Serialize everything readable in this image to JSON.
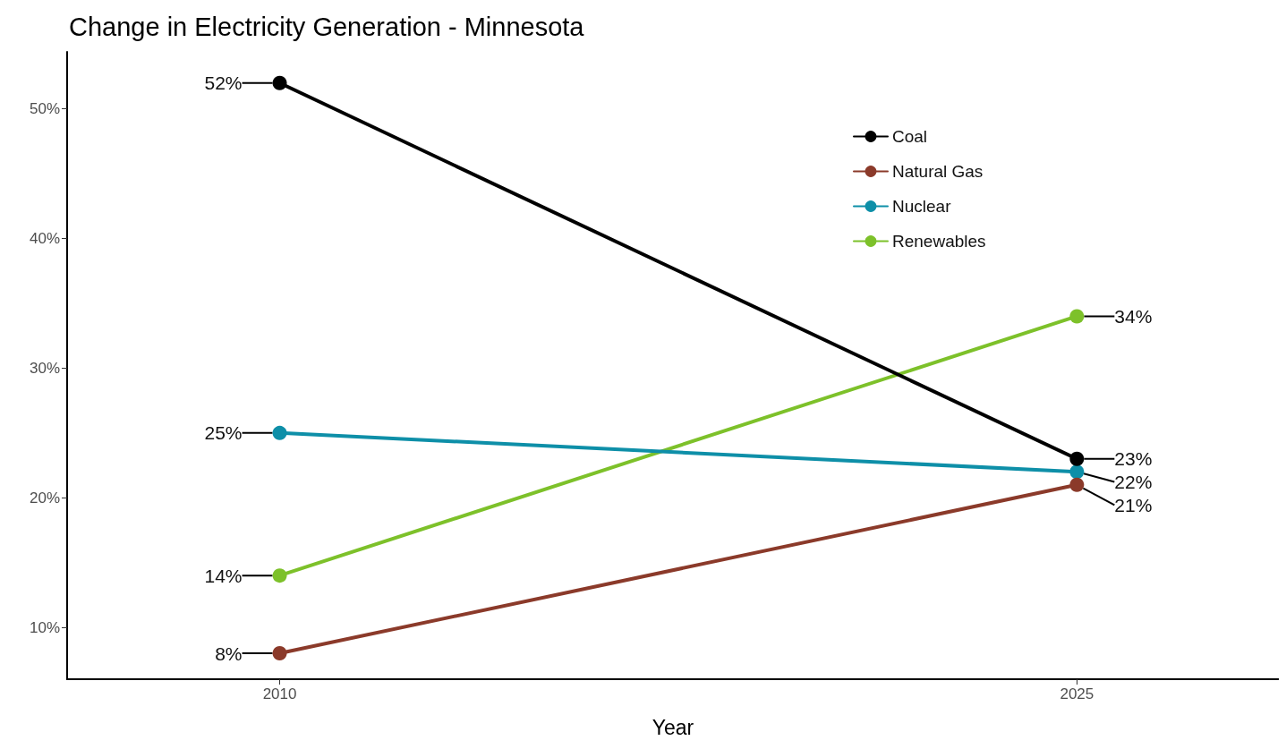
{
  "chart_data": {
    "type": "line",
    "title": "Change in Electricity Generation - Minnesota",
    "xlabel": "Year",
    "x": [
      2010,
      2025
    ],
    "xlim": [
      2006,
      2028.8
    ],
    "xticks": [
      2010,
      2025
    ],
    "ylim": [
      6,
      54.4
    ],
    "yticks": [
      {
        "value": 10,
        "label": "10%"
      },
      {
        "value": 20,
        "label": "20%"
      },
      {
        "value": 30,
        "label": "30%"
      },
      {
        "value": 40,
        "label": "40%"
      },
      {
        "value": 50,
        "label": "50%"
      }
    ],
    "series": [
      {
        "name": "Coal",
        "color": "#000000",
        "values": [
          52,
          23
        ],
        "value_labels": [
          "52%",
          "23%"
        ]
      },
      {
        "name": "Natural Gas",
        "color": "#8b3a2a",
        "values": [
          8,
          21
        ],
        "value_labels": [
          "8%",
          "21%"
        ]
      },
      {
        "name": "Nuclear",
        "color": "#0e8fa8",
        "values": [
          25,
          22
        ],
        "value_labels": [
          "25%",
          "22%"
        ]
      },
      {
        "name": "Renewables",
        "color": "#7dc12a",
        "values": [
          14,
          34
        ],
        "value_labels": [
          "14%",
          "34%"
        ]
      }
    ],
    "grid": false,
    "legend": "top right",
    "marker": "circle",
    "line_style": "solid"
  }
}
